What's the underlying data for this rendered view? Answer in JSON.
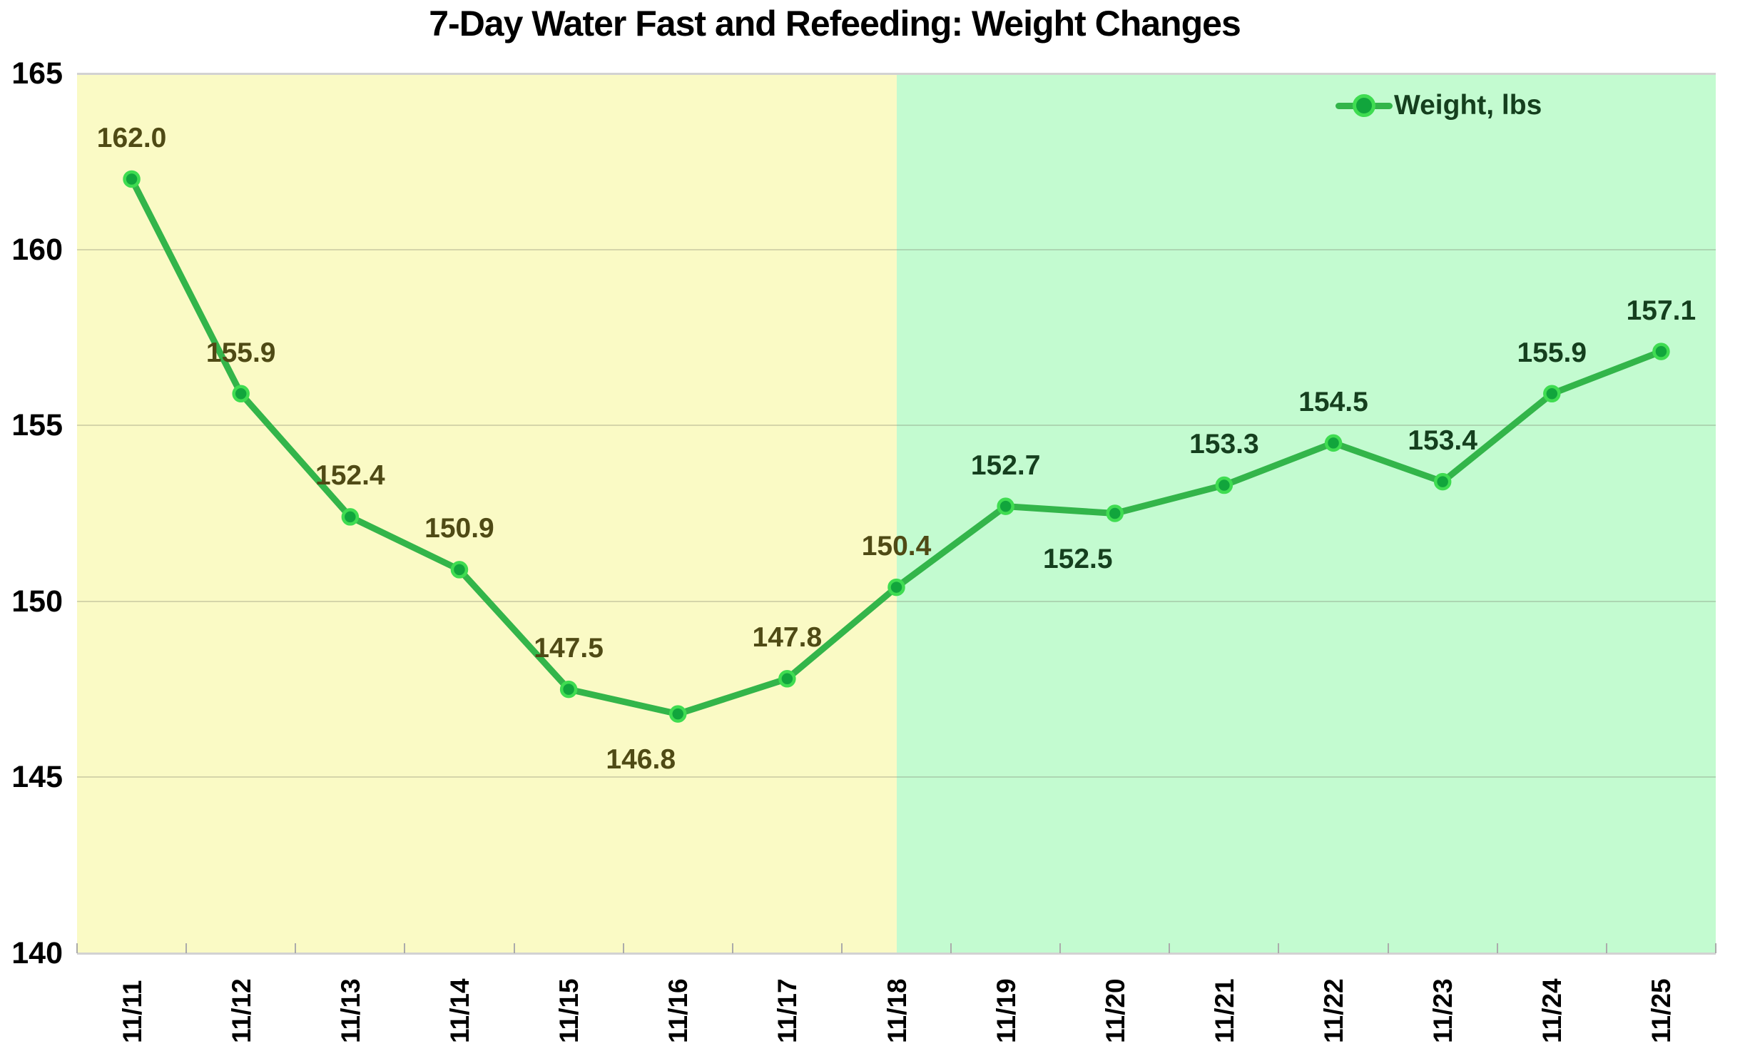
{
  "chart_data": {
    "type": "line",
    "title": "7-Day Water Fast and Refeeding: Weight Changes",
    "categories": [
      "11/11",
      "11/12",
      "11/13",
      "11/14",
      "11/15",
      "11/16",
      "11/17",
      "11/18",
      "11/19",
      "11/20",
      "11/21",
      "11/22",
      "11/23",
      "11/24",
      "11/25"
    ],
    "series": [
      {
        "name": "Weight, lbs",
        "values": [
          162.0,
          155.9,
          152.4,
          150.9,
          147.5,
          146.8,
          147.8,
          150.4,
          152.7,
          152.5,
          153.3,
          154.5,
          153.4,
          155.9,
          157.1
        ]
      }
    ],
    "data_labels": [
      {
        "text": "162.0",
        "position": "above"
      },
      {
        "text": "155.9",
        "position": "above"
      },
      {
        "text": "152.4",
        "position": "above"
      },
      {
        "text": "150.9",
        "position": "above"
      },
      {
        "text": "147.5",
        "position": "above"
      },
      {
        "text": "146.8",
        "position": "below"
      },
      {
        "text": "147.8",
        "position": "above"
      },
      {
        "text": "150.4",
        "position": "above"
      },
      {
        "text": "152.7",
        "position": "above"
      },
      {
        "text": "152.5",
        "position": "below"
      },
      {
        "text": "153.3",
        "position": "above"
      },
      {
        "text": "154.5",
        "position": "above"
      },
      {
        "text": "153.4",
        "position": "above"
      },
      {
        "text": "155.9",
        "position": "above"
      },
      {
        "text": "157.1",
        "position": "above"
      }
    ],
    "ylim": [
      140,
      165
    ],
    "yticks": [
      165,
      160,
      155,
      150,
      145,
      140
    ],
    "xlabel": "",
    "ylabel": "",
    "grid": "horizontal",
    "legend_position": "top-right",
    "regions": [
      {
        "name": "water-fast",
        "start_frac": 0.0,
        "end_frac": 0.5,
        "color": "#FAFAC5"
      },
      {
        "name": "refeeding",
        "start_frac": 0.5,
        "end_frac": 1.0,
        "color": "#C3FBD0"
      }
    ],
    "colors": {
      "line": "#33B54A",
      "marker_fill": "#11A53C",
      "marker_stroke": "#3FDC51",
      "label_fast": "#4F4A15",
      "label_refeed": "#153F1E",
      "axis_text": "#000000",
      "grid_major": "#D2D2D2",
      "grid_minor": "rgba(120,120,100,0.28)",
      "tick": "#ABABAB",
      "legend_text": "#153F1E"
    }
  }
}
